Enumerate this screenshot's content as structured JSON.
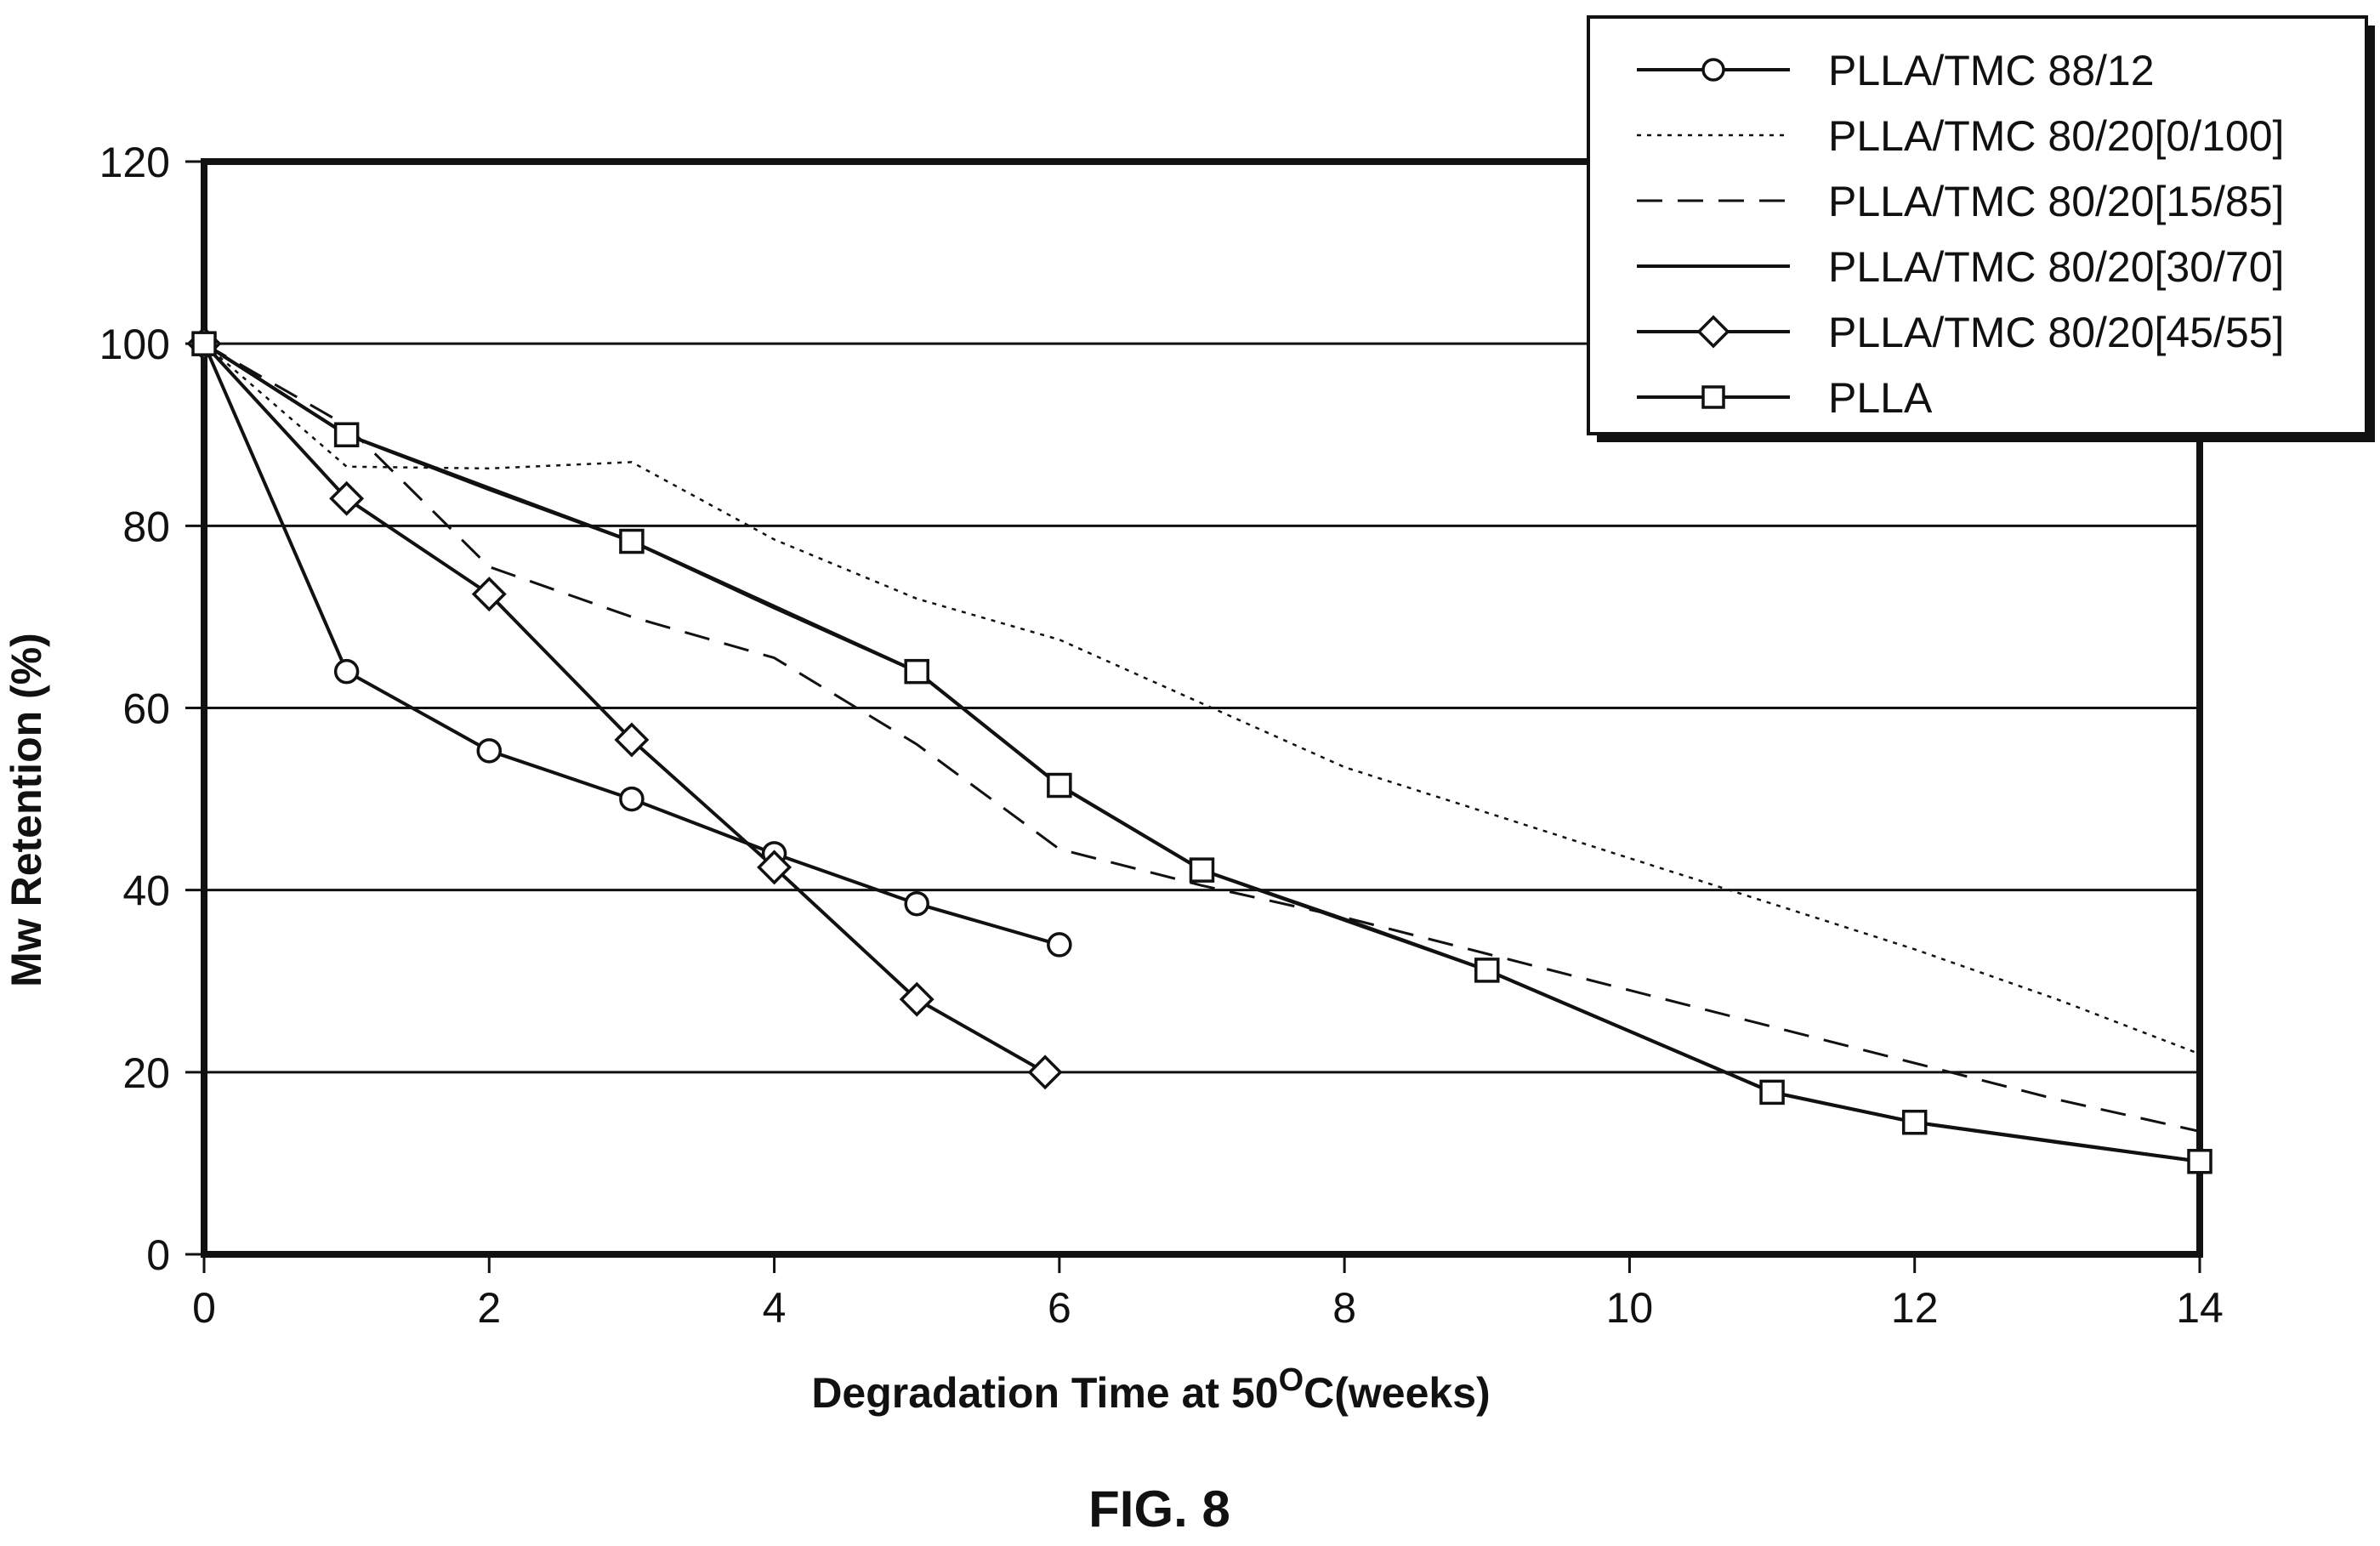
{
  "figure_label": "FIG. 8",
  "chart_data": {
    "type": "line",
    "title": "",
    "xlabel": "Degradation Time at 50",
    "xlabel_superscript": "O",
    "xlabel_suffix": "C(weeks)",
    "ylabel": "Mw Retention (%)",
    "xlim": [
      0,
      14
    ],
    "ylim": [
      0,
      120
    ],
    "xticks": [
      0,
      2,
      4,
      6,
      8,
      10,
      12,
      14
    ],
    "yticks": [
      0,
      20,
      40,
      60,
      80,
      100,
      120
    ],
    "grid": "horizontal",
    "legend_position": "top-right",
    "series": [
      {
        "name": "PLLA/TMC 88/12",
        "line_style": "solid",
        "marker": "circle",
        "x": [
          0,
          1,
          2,
          3,
          4,
          5,
          6
        ],
        "y": [
          100,
          64,
          55.3,
          50,
          44,
          38.5,
          34
        ]
      },
      {
        "name": "PLLA/TMC 80/20[0/100]",
        "line_style": "dotted",
        "marker": "none",
        "x": [
          0,
          1,
          2,
          3,
          4,
          5,
          6,
          7,
          8,
          9,
          10,
          11,
          12,
          13,
          14
        ],
        "y": [
          100,
          86.5,
          86.3,
          87,
          78.5,
          72,
          67.5,
          60.5,
          53.5,
          48.5,
          43.5,
          38.5,
          33.5,
          28,
          22
        ]
      },
      {
        "name": "PLLA/TMC 80/20[15/85]",
        "line_style": "dashed",
        "marker": "none",
        "x": [
          0,
          1,
          2,
          3,
          4,
          5,
          6,
          7,
          8,
          9,
          10,
          11,
          12,
          13,
          14
        ],
        "y": [
          100,
          91,
          75.5,
          70,
          65.5,
          56,
          44.5,
          40.5,
          37,
          33,
          29,
          25,
          21,
          17,
          13.5
        ]
      },
      {
        "name": "PLLA/TMC 80/20[30/70]",
        "line_style": "solid",
        "marker": "none",
        "x": [
          0,
          1,
          2,
          3,
          4,
          5,
          6,
          7,
          8,
          9,
          10,
          11,
          12,
          13,
          14
        ],
        "y": [
          100,
          90,
          84,
          78.3,
          71,
          64,
          51.5,
          42.2,
          36.8,
          31.2,
          24.5,
          17.8,
          14.5,
          12.3,
          10.2
        ]
      },
      {
        "name": "PLLA/TMC 80/20[45/55]",
        "line_style": "solid",
        "marker": "diamond",
        "x": [
          0,
          1,
          2,
          3,
          4,
          5,
          5.9
        ],
        "y": [
          100,
          83,
          72.5,
          56.5,
          42.5,
          28,
          20
        ]
      },
      {
        "name": "PLLA",
        "line_style": "solid",
        "marker": "square",
        "x": [
          0,
          1,
          3,
          5,
          6,
          7,
          9,
          11,
          12,
          14
        ],
        "y": [
          100,
          90,
          78.3,
          64,
          51.5,
          42.2,
          31.2,
          17.8,
          14.5,
          10.2
        ]
      }
    ]
  }
}
